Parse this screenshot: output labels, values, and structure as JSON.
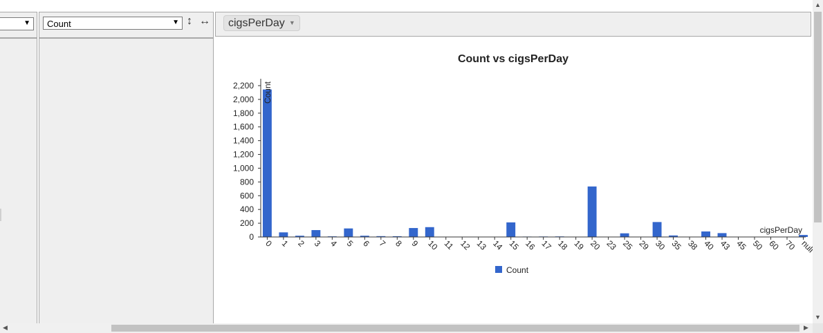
{
  "controls": {
    "aggregator_selected": "Count",
    "column_field": "cigsPerDay",
    "sort_vertical_icon": "↕",
    "sort_horizontal_icon": "↔",
    "dropdown_arrow": "▼",
    "pill_arrow": "▼"
  },
  "chart_data": {
    "type": "bar",
    "title": "Count vs cigsPerDay",
    "xlabel": "cigsPerDay",
    "ylabel": "Count",
    "ylim": [
      0,
      2300
    ],
    "yticks": [
      0,
      200,
      400,
      600,
      800,
      1000,
      1200,
      1400,
      1600,
      1800,
      2000,
      2200
    ],
    "ytick_labels": [
      "0",
      "200",
      "400",
      "600",
      "800",
      "1,000",
      "1,200",
      "1,400",
      "1,600",
      "1,800",
      "2,000",
      "2,200"
    ],
    "categories": [
      "0",
      "1",
      "2",
      "3",
      "4",
      "5",
      "6",
      "7",
      "8",
      "9",
      "10",
      "11",
      "12",
      "13",
      "14",
      "15",
      "16",
      "17",
      "18",
      "19",
      "20",
      "23",
      "25",
      "29",
      "30",
      "35",
      "38",
      "40",
      "43",
      "45",
      "50",
      "60",
      "70",
      "null"
    ],
    "series": [
      {
        "name": "Count",
        "color": "#3366cc",
        "values": [
          2144,
          67,
          18,
          100,
          9,
          124,
          18,
          12,
          11,
          130,
          143,
          5,
          3,
          3,
          2,
          212,
          6,
          7,
          8,
          2,
          734,
          3,
          53,
          1,
          217,
          22,
          1,
          80,
          56,
          1,
          2,
          1,
          1,
          29
        ]
      }
    ],
    "legend": {
      "position": "bottom",
      "entries": [
        "Count"
      ]
    },
    "grid": false
  }
}
